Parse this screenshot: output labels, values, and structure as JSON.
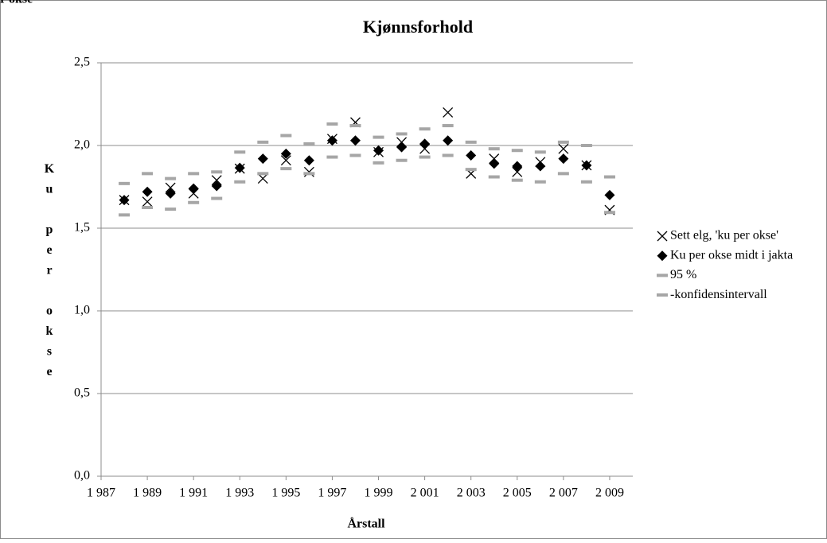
{
  "chart_data": {
    "type": "scatter",
    "title": "Kjønnsforhold",
    "xlabel": "Årstall",
    "ylabel": "Ku per okse",
    "x": [
      1988,
      1989,
      1990,
      1991,
      1992,
      1993,
      1994,
      1995,
      1996,
      1997,
      1998,
      1999,
      2000,
      2001,
      2002,
      2003,
      2004,
      2005,
      2006,
      2007,
      2008,
      2009
    ],
    "series": [
      {
        "name": "Sett elg, 'ku per okse'",
        "color": "#000000",
        "marker": "x",
        "values": [
          1.67,
          1.66,
          1.745,
          1.71,
          1.79,
          1.86,
          1.8,
          1.91,
          1.84,
          2.04,
          2.14,
          1.96,
          2.02,
          1.98,
          2.2,
          1.83,
          1.92,
          1.84,
          1.9,
          1.98,
          1.88,
          1.61
        ]
      },
      {
        "name": "Ku per okse midt i jakta",
        "color": "#000000",
        "marker": "diamond",
        "values": [
          1.67,
          1.72,
          1.71,
          1.74,
          1.755,
          1.865,
          1.92,
          1.95,
          1.91,
          2.03,
          2.03,
          1.97,
          1.99,
          2.01,
          2.03,
          1.94,
          1.89,
          1.875,
          1.875,
          1.92,
          1.88,
          1.7
        ]
      },
      {
        "name": "95 %",
        "color": "#a6a6a6",
        "marker": "dash",
        "values": [
          1.77,
          1.83,
          1.8,
          1.83,
          1.84,
          1.96,
          2.02,
          2.06,
          2.01,
          2.13,
          2.12,
          2.05,
          2.07,
          2.1,
          2.12,
          2.02,
          1.98,
          1.97,
          1.96,
          2.02,
          2.0,
          1.81
        ]
      },
      {
        "name": "-konfidensintervall",
        "color": "#a6a6a6",
        "marker": "dash",
        "values": [
          1.58,
          1.625,
          1.615,
          1.655,
          1.68,
          1.78,
          1.83,
          1.86,
          1.83,
          1.93,
          1.94,
          1.895,
          1.91,
          1.93,
          1.94,
          1.855,
          1.81,
          1.79,
          1.78,
          1.83,
          1.78,
          1.595
        ]
      }
    ],
    "xlim": [
      1987,
      2010
    ],
    "ylim": [
      0,
      2.5
    ],
    "xticks": [
      {
        "value": 1987,
        "label": "1 987"
      },
      {
        "value": 1989,
        "label": "1 989"
      },
      {
        "value": 1991,
        "label": "1 991"
      },
      {
        "value": 1993,
        "label": "1 993"
      },
      {
        "value": 1995,
        "label": "1 995"
      },
      {
        "value": 1997,
        "label": "1 997"
      },
      {
        "value": 1999,
        "label": "1 999"
      },
      {
        "value": 2001,
        "label": "2 001"
      },
      {
        "value": 2003,
        "label": "2 003"
      },
      {
        "value": 2005,
        "label": "2 005"
      },
      {
        "value": 2007,
        "label": "2 007"
      },
      {
        "value": 2009,
        "label": "2 009"
      }
    ],
    "yticks": [
      {
        "value": 0,
        "label": "0,0"
      },
      {
        "value": 0.5,
        "label": "0,5"
      },
      {
        "value": 1,
        "label": "1,0"
      },
      {
        "value": 1.5,
        "label": "1,5"
      },
      {
        "value": 2,
        "label": "2,0"
      },
      {
        "value": 2.5,
        "label": "2,5"
      }
    ],
    "grid": true,
    "legend": "right"
  }
}
